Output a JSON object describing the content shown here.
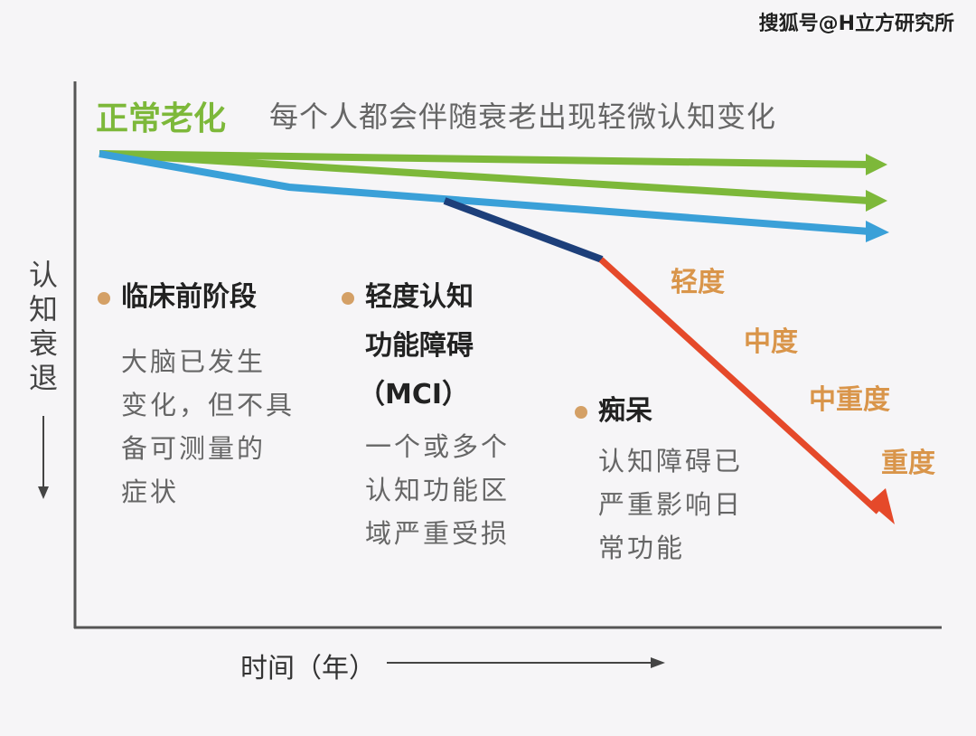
{
  "watermark": "搜狐号@H立方研究所",
  "header": {
    "title": "正常老化",
    "subtitle": "每个人都会伴随衰老出现轻微认知变化"
  },
  "axes": {
    "ylabel": "认知衰退",
    "xlabel": "时间（年）"
  },
  "stages": [
    {
      "title": "临床前阶段",
      "desc": [
        "大脑已发生",
        "变化，但不具",
        "备可测量的",
        "症状"
      ]
    },
    {
      "title": [
        "轻度认知",
        "功能障碍",
        "（MCI）"
      ],
      "desc": [
        "一个或多个",
        "认知功能区",
        "域严重受损"
      ]
    },
    {
      "title": "痴呆",
      "desc": [
        "认知障碍已",
        "严重影响日",
        "常功能"
      ]
    }
  ],
  "severity": [
    "轻度",
    "中度",
    "中重度",
    "重度"
  ],
  "colors": {
    "normal_aging": "#7db83a",
    "preclinical": "#3aa0d8",
    "mci": "#1d3f7a",
    "dementia": "#e5492a",
    "dot": "#d4a066",
    "severity_text": "#d9954a"
  }
}
